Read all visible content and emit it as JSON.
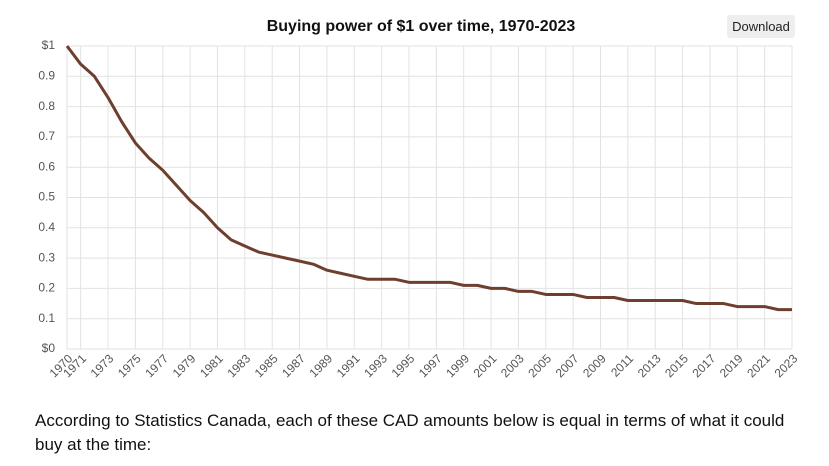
{
  "chart_data": {
    "type": "line",
    "title": "Buying power of $1 over time, 1970-2023",
    "x": [
      1970,
      1971,
      1972,
      1973,
      1974,
      1975,
      1976,
      1977,
      1978,
      1979,
      1980,
      1981,
      1982,
      1983,
      1984,
      1985,
      1986,
      1987,
      1988,
      1989,
      1990,
      1991,
      1992,
      1993,
      1994,
      1995,
      1996,
      1997,
      1998,
      1999,
      2000,
      2001,
      2002,
      2003,
      2004,
      2005,
      2006,
      2007,
      2008,
      2009,
      2010,
      2011,
      2012,
      2013,
      2014,
      2015,
      2016,
      2017,
      2018,
      2019,
      2020,
      2021,
      2022,
      2023
    ],
    "values": [
      1.0,
      0.94,
      0.9,
      0.83,
      0.75,
      0.68,
      0.63,
      0.59,
      0.54,
      0.49,
      0.45,
      0.4,
      0.36,
      0.34,
      0.32,
      0.31,
      0.3,
      0.29,
      0.28,
      0.26,
      0.25,
      0.24,
      0.23,
      0.23,
      0.23,
      0.22,
      0.22,
      0.22,
      0.22,
      0.21,
      0.21,
      0.2,
      0.2,
      0.19,
      0.19,
      0.18,
      0.18,
      0.18,
      0.17,
      0.17,
      0.17,
      0.16,
      0.16,
      0.16,
      0.16,
      0.16,
      0.15,
      0.15,
      0.15,
      0.14,
      0.14,
      0.14,
      0.13,
      0.13
    ],
    "color": "#6e3f2f",
    "xlim": [
      1970,
      2023
    ],
    "xticks": [
      1970,
      1971,
      1973,
      1975,
      1977,
      1979,
      1981,
      1983,
      1985,
      1987,
      1989,
      1991,
      1993,
      1995,
      1997,
      1999,
      2001,
      2003,
      2005,
      2007,
      2009,
      2011,
      2013,
      2015,
      2017,
      2019,
      2021,
      2023
    ],
    "ylim": [
      0,
      1
    ],
    "yticks": [
      {
        "value": 0,
        "label": "$0"
      },
      0.1,
      0.2,
      0.3,
      0.4,
      0.5,
      0.6,
      0.7,
      0.8,
      0.9,
      {
        "value": 1,
        "label": "$1"
      }
    ],
    "grid": true
  },
  "download_button": "Download",
  "paragraph": "According to Statistics Canada, each of these CAD amounts below is equal in terms of what it could buy at the time:"
}
